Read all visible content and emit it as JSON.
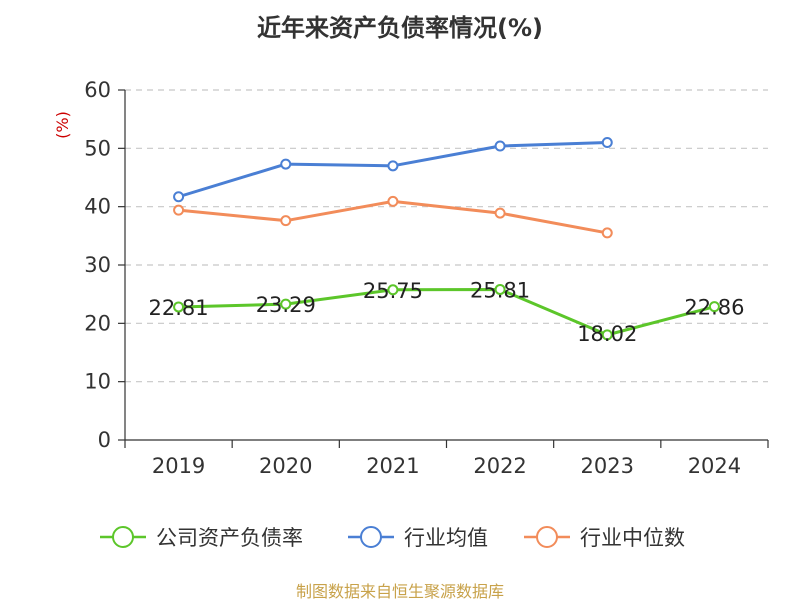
{
  "chart_data": {
    "type": "line",
    "title": "近年来资产负债率情况(%)",
    "ylabel": "(%)",
    "xlabel": "",
    "categories": [
      "2019",
      "2020",
      "2021",
      "2022",
      "2023",
      "2024"
    ],
    "ylim": [
      0,
      60
    ],
    "yticks": [
      0,
      10,
      20,
      30,
      40,
      50,
      60
    ],
    "grid": true,
    "legend_position": "bottom",
    "series": [
      {
        "name": "公司资产负债率",
        "color": "#5cc62a",
        "values": [
          22.81,
          23.29,
          25.75,
          25.81,
          18.02,
          22.86
        ],
        "labels": [
          "22.81",
          "23.29",
          "25.75",
          "25.81",
          "18.02",
          "22.86"
        ]
      },
      {
        "name": "行业均值",
        "color": "#4a7fd4",
        "values": [
          41.7,
          47.3,
          47.0,
          50.4,
          51.0,
          null
        ]
      },
      {
        "name": "行业中位数",
        "color": "#f28c5a",
        "values": [
          39.4,
          37.6,
          40.9,
          38.9,
          35.5,
          null
        ]
      }
    ]
  },
  "footer": {
    "source": "制图数据来自恒生聚源数据库"
  }
}
